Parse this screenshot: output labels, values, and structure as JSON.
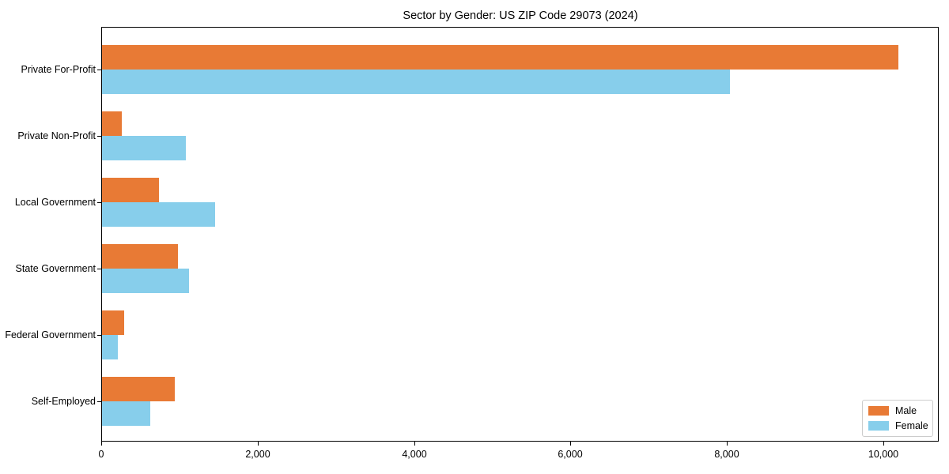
{
  "chart_data": {
    "type": "bar",
    "orientation": "horizontal",
    "title": "Sector by Gender: US ZIP Code 29073 (2024)",
    "xlabel": "",
    "ylabel": "",
    "categories": [
      "Private For-Profit",
      "Private Non-Profit",
      "Local Government",
      "State Government",
      "Federal Government",
      "Self-Employed"
    ],
    "series": [
      {
        "name": "Male",
        "color": "#E87A35",
        "values": [
          10180,
          250,
          730,
          975,
          285,
          930
        ]
      },
      {
        "name": "Female",
        "color": "#87CEEB",
        "values": [
          8030,
          1075,
          1450,
          1115,
          205,
          620
        ]
      }
    ],
    "xlim": [
      0,
      10700
    ],
    "xticks": [
      0,
      2000,
      4000,
      6000,
      8000,
      10000
    ],
    "xtick_labels": [
      "0",
      "2,000",
      "4,000",
      "6,000",
      "8,000",
      "10,000"
    ],
    "grid": false,
    "legend_position": "lower right",
    "axis_color": "#000000",
    "text_color": "#000000",
    "background_color": "#ffffff"
  },
  "legend": {
    "items": [
      {
        "label": "Male",
        "color": "#E87A35"
      },
      {
        "label": "Female",
        "color": "#87CEEB"
      }
    ]
  }
}
